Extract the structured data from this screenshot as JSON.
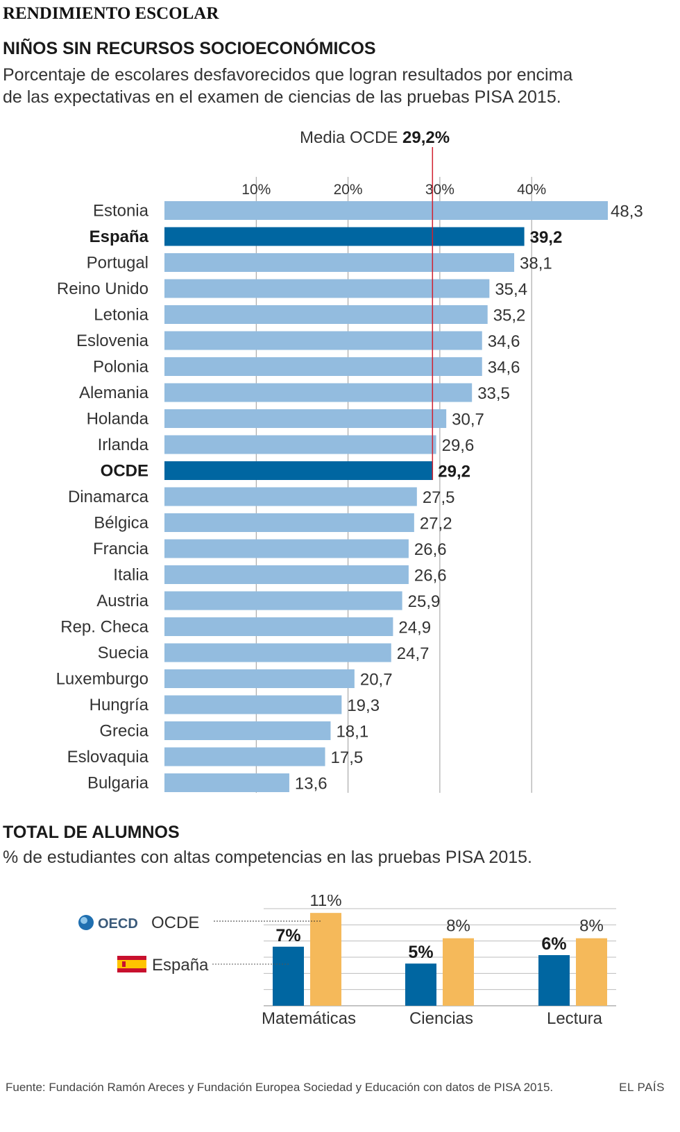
{
  "kicker": "RENDIMIENTO ESCOLAR",
  "section1": {
    "title": "NIÑOS SIN RECURSOS SOCIOECONÓMICOS",
    "subtitle_line1": "Porcentaje de escolares desfavorecidos que logran resultados por encima",
    "subtitle_line2": "de las expectativas en el examen de ciencias de las pruebas PISA 2015."
  },
  "section2": {
    "title": "TOTAL DE ALUMNOS",
    "subtitle": "% de estudiantes con altas competencias en las pruebas PISA 2015."
  },
  "source": "Fuente: Fundación Ramón Areces y Fundación Europea Sociedad y Educación con datos de PISA 2015.",
  "brand": "EL PAÍS",
  "colors": {
    "bar": "#93bcdf",
    "highlight": "#0066a1",
    "mean_line": "#d0202f",
    "ocde": "#f5b95a",
    "grid": "#9a9a9a"
  },
  "chart_data": [
    {
      "type": "bar",
      "orientation": "horizontal",
      "mean_label_prefix": "Media OCDE",
      "mean_label_value": "29,2%",
      "mean": 29.2,
      "ticks": [
        10,
        20,
        30,
        40
      ],
      "tick_labels": [
        "10%",
        "20%",
        "30%",
        "40%"
      ],
      "xlim": [
        0,
        48.3
      ],
      "categories": [
        "Estonia",
        "España",
        "Portugal",
        "Reino Unido",
        "Letonia",
        "Eslovenia",
        "Polonia",
        "Alemania",
        "Holanda",
        "Irlanda",
        "OCDE",
        "Dinamarca",
        "Bélgica",
        "Francia",
        "Italia",
        "Austria",
        "Rep. Checa",
        "Suecia",
        "Luxemburgo",
        "Hungría",
        "Grecia",
        "Eslovaquia",
        "Bulgaria"
      ],
      "values": [
        48.3,
        39.2,
        38.1,
        35.4,
        35.2,
        34.6,
        34.6,
        33.5,
        30.7,
        29.6,
        29.2,
        27.5,
        27.2,
        26.6,
        26.6,
        25.9,
        24.9,
        24.7,
        20.7,
        19.3,
        18.1,
        17.5,
        13.6
      ],
      "value_labels": [
        "48,3",
        "39,2",
        "38,1",
        "35,4",
        "35,2",
        "34,6",
        "34,6",
        "33,5",
        "30,7",
        "29,6",
        "29,2",
        "27,5",
        "27,2",
        "26,6",
        "26,6",
        "25,9",
        "24,9",
        "24,7",
        "20,7",
        "19,3",
        "18,1",
        "17,5",
        "13,6"
      ],
      "highlighted": [
        "España",
        "OCDE"
      ]
    },
    {
      "type": "bar",
      "orientation": "vertical",
      "categories": [
        "Matemáticas",
        "Ciencias",
        "Lectura"
      ],
      "ylim": [
        0,
        12
      ],
      "series": [
        {
          "name": "España",
          "values": [
            7,
            5,
            6
          ],
          "value_labels": [
            "7%",
            "5%",
            "6%"
          ]
        },
        {
          "name": "OCDE",
          "values": [
            11,
            8,
            8
          ],
          "value_labels": [
            "11%",
            "8%",
            "8%"
          ]
        }
      ],
      "legend": {
        "ocde_logo_text": "OECD",
        "ocde_label": "OCDE",
        "spain_label": "España"
      }
    }
  ]
}
